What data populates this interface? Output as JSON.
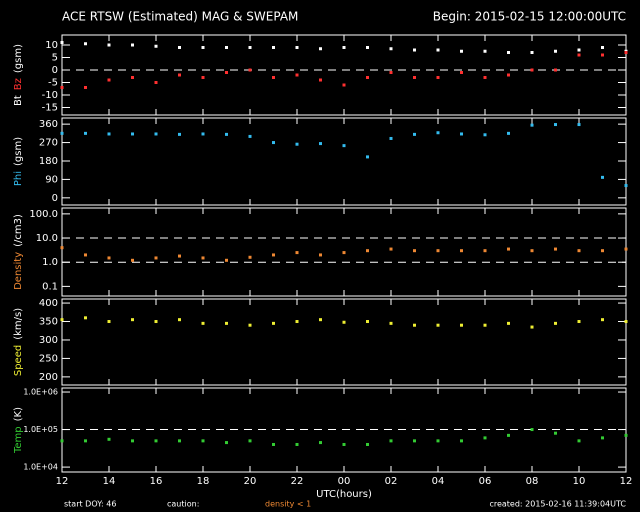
{
  "header": {
    "title": "ACE RTSW (Estimated) MAG & SWEPAM",
    "begin": "Begin: 2015-02-15 12:00:00UTC"
  },
  "footer": {
    "start": "start DOY:  46",
    "caution": "caution:",
    "caution_note": "density < 1",
    "created": "created: 2015-02-16 11:39:04UTC"
  },
  "chart_data": [
    {
      "type": "scatter",
      "ylabel": [
        {
          "text": "Bt",
          "color": "#ffffff"
        },
        {
          "text": "Bz",
          "color": "#ff3030"
        },
        {
          "text": "(gsm)",
          "color": "#ffffff"
        }
      ],
      "xlim": [
        0,
        24
      ],
      "ylim": [
        -18,
        14
      ],
      "yticks": [
        -15,
        -10,
        -5,
        0,
        5,
        10
      ],
      "reference_lines": [
        0
      ],
      "x": [
        0,
        1,
        2,
        3,
        4,
        5,
        6,
        7,
        8,
        9,
        10,
        11,
        12,
        13,
        14,
        15,
        16,
        17,
        18,
        19,
        20,
        21,
        22,
        23,
        24
      ],
      "series": [
        {
          "name": "Bt",
          "color": "#ffffff",
          "values": [
            11,
            10.5,
            10,
            10,
            9.5,
            9,
            9,
            9,
            9,
            9,
            9,
            8.5,
            9,
            9,
            8.5,
            8,
            8,
            7.5,
            7.5,
            7,
            7,
            7.5,
            8,
            9,
            7.5
          ]
        },
        {
          "name": "Bz",
          "color": "#ff3030",
          "values": [
            -7,
            -7,
            -4,
            -3,
            -5,
            -2,
            -3,
            -1,
            0,
            -3,
            -2,
            -4,
            -6,
            -3,
            -1,
            -3,
            -3,
            -1,
            -3,
            -2,
            0,
            0,
            6,
            6,
            7
          ]
        }
      ]
    },
    {
      "type": "scatter",
      "ylabel": [
        {
          "text": "Phi",
          "color": "#33bbee"
        },
        {
          "text": "(gsm)",
          "color": "#ffffff"
        }
      ],
      "xlim": [
        0,
        24
      ],
      "ylim": [
        -35,
        390
      ],
      "yticks": [
        0,
        90,
        180,
        270,
        360
      ],
      "reference_lines": [],
      "x": [
        0,
        1,
        2,
        3,
        4,
        5,
        6,
        7,
        8,
        9,
        10,
        11,
        12,
        13,
        14,
        15,
        16,
        17,
        18,
        19,
        20,
        21,
        22,
        23,
        24
      ],
      "series": [
        {
          "name": "Phi",
          "color": "#33bbee",
          "values": [
            315,
            315,
            312,
            312,
            312,
            310,
            312,
            310,
            300,
            270,
            262,
            265,
            255,
            200,
            290,
            310,
            318,
            312,
            308,
            315,
            355,
            358,
            358,
            100,
            60
          ]
        }
      ]
    },
    {
      "type": "scatter",
      "log": true,
      "ylabel": [
        {
          "text": "Density",
          "color": "#ee8833"
        },
        {
          "text": "(/cm3)",
          "color": "#ffffff"
        }
      ],
      "xlim": [
        0,
        24
      ],
      "ylim": [
        0.04,
        175
      ],
      "yticks": [
        0.1,
        {
          "value": 1,
          "label": "1.0"
        },
        {
          "value": 10,
          "label": "10.0"
        },
        {
          "value": 100,
          "label": "100.0"
        }
      ],
      "reference_lines": [
        1,
        10
      ],
      "x": [
        0,
        1,
        2,
        3,
        4,
        5,
        6,
        7,
        8,
        9,
        10,
        11,
        12,
        13,
        14,
        15,
        16,
        17,
        18,
        19,
        20,
        21,
        22,
        23,
        24
      ],
      "series": [
        {
          "name": "Density",
          "color": "#ee8833",
          "values": [
            4,
            2,
            1.5,
            1.2,
            1.5,
            1.8,
            1.5,
            1.2,
            1.6,
            2,
            2.5,
            2,
            2.5,
            3,
            3.5,
            3,
            3,
            3,
            3,
            3.5,
            3,
            3.5,
            3,
            3,
            3.5
          ]
        }
      ]
    },
    {
      "type": "scatter",
      "ylabel": [
        {
          "text": "Speed",
          "color": "#eeee33"
        },
        {
          "text": "(km/s)",
          "color": "#ffffff"
        }
      ],
      "xlim": [
        0,
        24
      ],
      "ylim": [
        178,
        411
      ],
      "yticks": [
        200,
        250,
        300,
        350,
        400
      ],
      "reference_lines": [],
      "x": [
        0,
        1,
        2,
        3,
        4,
        5,
        6,
        7,
        8,
        9,
        10,
        11,
        12,
        13,
        14,
        15,
        16,
        17,
        18,
        19,
        20,
        21,
        22,
        23,
        24
      ],
      "series": [
        {
          "name": "Speed",
          "color": "#eeee33",
          "values": [
            355,
            360,
            350,
            355,
            350,
            355,
            345,
            345,
            340,
            345,
            350,
            355,
            348,
            350,
            345,
            340,
            340,
            340,
            340,
            345,
            335,
            345,
            350,
            355,
            350
          ]
        }
      ]
    },
    {
      "type": "scatter",
      "log": true,
      "ylabel": [
        {
          "text": "Temp",
          "color": "#33cc33"
        },
        {
          "text": "(K)",
          "color": "#ffffff"
        }
      ],
      "xlim": [
        0,
        24
      ],
      "ylim": [
        7400,
        1280000
      ],
      "yticks": [
        {
          "value": 10000,
          "label": "1.0E+04"
        },
        {
          "value": 100000,
          "label": "1.0E+05"
        },
        {
          "value": 1000000,
          "label": "1.0E+06"
        }
      ],
      "reference_lines": [
        100000
      ],
      "x": [
        0,
        1,
        2,
        3,
        4,
        5,
        6,
        7,
        8,
        9,
        10,
        11,
        12,
        13,
        14,
        15,
        16,
        17,
        18,
        19,
        20,
        21,
        22,
        23,
        24
      ],
      "xlabel": "UTC(hours)",
      "xticks": [
        {
          "value": 0,
          "label": "12"
        },
        {
          "value": 2,
          "label": "14"
        },
        {
          "value": 4,
          "label": "16"
        },
        {
          "value": 6,
          "label": "18"
        },
        {
          "value": 8,
          "label": "20"
        },
        {
          "value": 10,
          "label": "22"
        },
        {
          "value": 12,
          "label": "00"
        },
        {
          "value": 14,
          "label": "02"
        },
        {
          "value": 16,
          "label": "04"
        },
        {
          "value": 18,
          "label": "06"
        },
        {
          "value": 20,
          "label": "08"
        },
        {
          "value": 22,
          "label": "10"
        },
        {
          "value": 24,
          "label": "12"
        }
      ],
      "series": [
        {
          "name": "Temp",
          "color": "#33cc33",
          "values": [
            50000,
            50000,
            55000,
            50000,
            50000,
            50000,
            50000,
            45000,
            50000,
            40000,
            40000,
            45000,
            40000,
            40000,
            50000,
            50000,
            50000,
            50000,
            60000,
            70000,
            100000,
            80000,
            50000,
            60000,
            70000
          ]
        }
      ]
    }
  ]
}
